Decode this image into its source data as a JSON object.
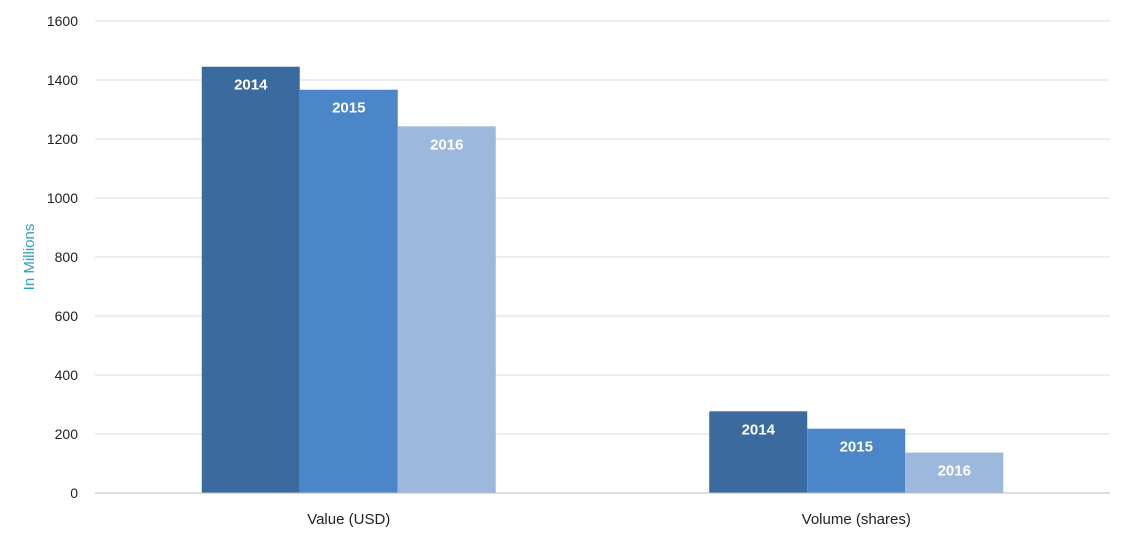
{
  "chart_data": {
    "type": "bar",
    "categories": [
      "Value (USD)",
      "Volume (shares)"
    ],
    "series": [
      {
        "name": "2014",
        "values": [
          1445,
          277
        ],
        "color": "#3b6a9f"
      },
      {
        "name": "2015",
        "values": [
          1367,
          218
        ],
        "color": "#4a86c8"
      },
      {
        "name": "2016",
        "values": [
          1243,
          137
        ],
        "color": "#9db8dd"
      }
    ],
    "ylabel": "In Millions",
    "ylim": [
      0,
      1600
    ],
    "yticks": [
      0,
      200,
      400,
      600,
      800,
      1000,
      1200,
      1400,
      1600
    ],
    "grid": true,
    "legend": "none",
    "data_labels": "series-name",
    "colors": {
      "ylabel": "#2a9fc7",
      "grid": "#dddddd",
      "axis": "#bbbbbb"
    }
  }
}
